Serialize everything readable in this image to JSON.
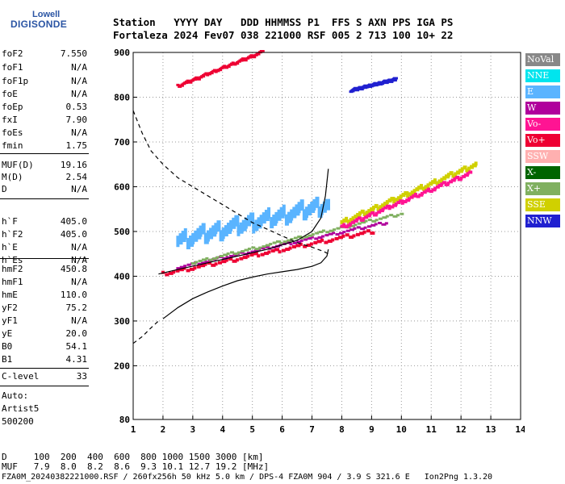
{
  "logo": {
    "line1": "Lowell",
    "line2": "DIGISONDE"
  },
  "header": {
    "row1": "Station   YYYY DAY   DDD HHMMSS P1  FFS S AXN PPS IGA PS",
    "row2": "Fortaleza 2024 Fev07 038 221000 RSF 005 2 713 100 10+ 22"
  },
  "params": [
    {
      "label": "foF2",
      "value": "7.550"
    },
    {
      "label": "foF1",
      "value": "N/A"
    },
    {
      "label": "foF1p",
      "value": "N/A"
    },
    {
      "label": "foE",
      "value": "N/A"
    },
    {
      "label": "foEp",
      "value": "0.53"
    },
    {
      "label": "fxI",
      "value": "7.90"
    },
    {
      "label": "foEs",
      "value": "N/A"
    },
    {
      "label": "fmin",
      "value": "1.75"
    },
    {
      "label": "MUF(D)",
      "value": "19.16"
    },
    {
      "label": "M(D)",
      "value": "2.54"
    },
    {
      "label": "D",
      "value": "N/A"
    },
    {
      "label": "h`F",
      "value": "405.0"
    },
    {
      "label": "h`F2",
      "value": "405.0"
    },
    {
      "label": "h`E",
      "value": "N/A"
    },
    {
      "label": "h`Es",
      "value": "N/A"
    },
    {
      "label": "hmF2",
      "value": "450.8"
    },
    {
      "label": "hmF1",
      "value": "N/A"
    },
    {
      "label": "hmE",
      "value": "110.0"
    },
    {
      "label": "yF2",
      "value": "75.2"
    },
    {
      "label": "yF1",
      "value": "N/A"
    },
    {
      "label": "yE",
      "value": "20.0"
    },
    {
      "label": "B0",
      "value": "54.1"
    },
    {
      "label": "B1",
      "value": "4.31"
    },
    {
      "label": "C-level",
      "value": "33"
    }
  ],
  "auto": {
    "line1": "Auto:",
    "line2": "Artist5",
    "line3": "500200"
  },
  "legend": [
    {
      "label": "NoVal",
      "color": "#888888"
    },
    {
      "label": "NNE",
      "color": "#00e5ee"
    },
    {
      "label": "E",
      "color": "#5ab4ff"
    },
    {
      "label": "W",
      "color": "#b0009c"
    },
    {
      "label": "Vo-",
      "color": "#ff1493"
    },
    {
      "label": "Vo+",
      "color": "#ee0033"
    },
    {
      "label": "SSW",
      "color": "#ffb0b0"
    },
    {
      "label": "X-",
      "color": "#006400"
    },
    {
      "label": "X+",
      "color": "#80b060"
    },
    {
      "label": "SSE",
      "color": "#d0d000"
    },
    {
      "label": "NNW",
      "color": "#2020d0"
    }
  ],
  "footer": {
    "row_d": "D     100  200  400  600  800 1000 1500 3000 [km]",
    "row_muf": "MUF   7.9  8.0  8.2  8.6  9.3 10.1 12.7 19.2 [MHz]",
    "row_file": "FZA0M_20240382221000.RSF / 260fx256h 50 kHz 5.0 km / DPS-4 FZA0M 904 / 3.9 S 321.6 E   Ion2Png 1.3.20"
  },
  "chart_data": {
    "type": "scatter",
    "xlim": [
      1,
      14
    ],
    "ylim": [
      80,
      900
    ],
    "xticks": [
      "1",
      "2",
      "3",
      "4",
      "5",
      "6",
      "7",
      "8",
      "9",
      "10",
      "11",
      "12",
      "13",
      "14"
    ],
    "yticks": [
      "80",
      "200",
      "300",
      "400",
      "500",
      "600",
      "700",
      "800",
      "900"
    ],
    "grid": true,
    "profile": [
      [
        1.85,
        405
      ],
      [
        2.5,
        415
      ],
      [
        3.5,
        430
      ],
      [
        4.5,
        445
      ],
      [
        5.5,
        460
      ],
      [
        6.5,
        480
      ],
      [
        7.0,
        500
      ],
      [
        7.3,
        530
      ],
      [
        7.45,
        580
      ],
      [
        7.55,
        640
      ]
    ],
    "bottomside": [
      [
        2.0,
        305
      ],
      [
        2.5,
        330
      ],
      [
        3.0,
        350
      ],
      [
        3.5,
        365
      ],
      [
        4.0,
        378
      ],
      [
        4.5,
        390
      ],
      [
        5.0,
        398
      ],
      [
        5.5,
        405
      ],
      [
        6.0,
        410
      ],
      [
        6.5,
        415
      ],
      [
        7.0,
        422
      ],
      [
        7.3,
        430
      ],
      [
        7.5,
        445
      ],
      [
        7.55,
        460
      ]
    ],
    "dashed": [
      [
        1.0,
        770
      ],
      [
        1.3,
        720
      ],
      [
        1.6,
        680
      ],
      [
        2.0,
        650
      ],
      [
        2.5,
        620
      ],
      [
        3.0,
        600
      ],
      [
        3.5,
        580
      ],
      [
        4.0,
        560
      ],
      [
        4.5,
        540
      ],
      [
        5.0,
        520
      ],
      [
        5.5,
        505
      ],
      [
        6.0,
        490
      ],
      [
        6.5,
        475
      ],
      [
        7.0,
        465
      ],
      [
        7.4,
        455
      ],
      [
        7.55,
        450
      ]
    ],
    "dashed_low": [
      [
        1.0,
        250
      ],
      [
        1.3,
        265
      ],
      [
        1.6,
        285
      ],
      [
        1.85,
        300
      ]
    ],
    "traces": [
      {
        "name": "Vo+",
        "color": "#ee0033",
        "pts": [
          [
            2.0,
            405
          ],
          [
            9.0,
            500
          ]
        ],
        "w": 4
      },
      {
        "name": "W",
        "color": "#b0009c",
        "pts": [
          [
            2.5,
            420
          ],
          [
            9.5,
            520
          ]
        ],
        "w": 3
      },
      {
        "name": "X+",
        "color": "#80b060",
        "pts": [
          [
            3.0,
            430
          ],
          [
            10.0,
            540
          ]
        ],
        "w": 3
      },
      {
        "name": "E",
        "color": "#5ab4ff",
        "pts": [
          [
            2.5,
            480
          ],
          [
            7.5,
            560
          ]
        ],
        "w": 14
      },
      {
        "name": "SSE",
        "color": "#d0d000",
        "pts": [
          [
            8.0,
            520
          ],
          [
            12.5,
            650
          ]
        ],
        "w": 5
      },
      {
        "name": "Vo-",
        "color": "#ff1493",
        "pts": [
          [
            8.0,
            510
          ],
          [
            12.3,
            630
          ]
        ],
        "w": 4
      },
      {
        "name": "Vo+",
        "color": "#ee0033",
        "pts": [
          [
            2.5,
            825
          ],
          [
            5.3,
            900
          ]
        ],
        "w": 3
      },
      {
        "name": "NNW",
        "color": "#2020d0",
        "pts": [
          [
            8.3,
            815
          ],
          [
            9.8,
            840
          ]
        ],
        "w": 3
      }
    ]
  }
}
